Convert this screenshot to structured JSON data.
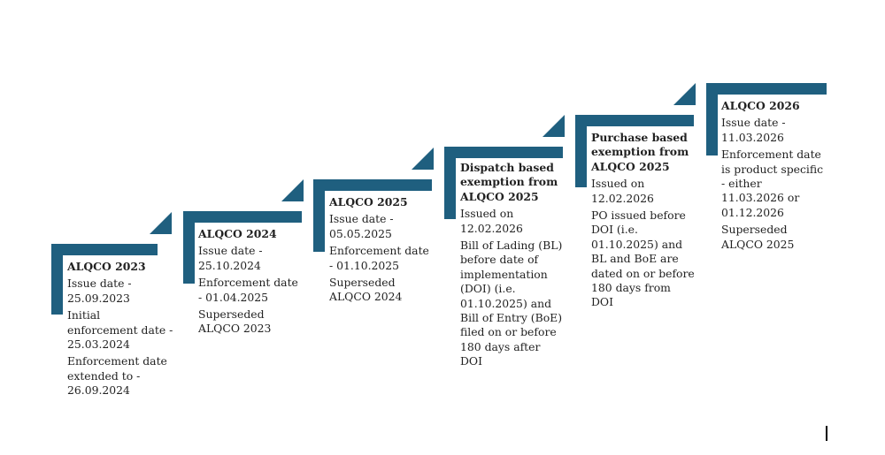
{
  "accent_color": "#1f5f7f",
  "steps": [
    {
      "title": "ALQCO 2023",
      "paragraphs": [
        "Issue date - 25.09.2023",
        "Initial enforcement date - 25.03.2024",
        "Enforcement date extended to - 26.09.2024"
      ]
    },
    {
      "title": "ALQCO 2024",
      "paragraphs": [
        "Issue date - 25.10.2024",
        "Enforcement date - 01.04.2025",
        "Superseded ALQCO 2023"
      ]
    },
    {
      "title": "ALQCO 2025",
      "paragraphs": [
        "Issue date - 05.05.2025",
        "Enforcement date - 01.10.2025",
        "Superseded ALQCO 2024"
      ]
    },
    {
      "title": "Dispatch based exemption from ALQCO 2025",
      "paragraphs": [
        "Issued on 12.02.2026",
        "Bill of Lading (BL) before date of implementation (DOI) (i.e. 01.10.2025) and Bill of Entry (BoE) filed on or before 180 days after DOI"
      ]
    },
    {
      "title": "Purchase based exemption from ALQCO 2025",
      "paragraphs": [
        "Issued on 12.02.2026",
        "PO issued before DOI (i.e. 01.10.2025) and BL and BoE are dated on or before 180 days from DOI"
      ]
    },
    {
      "title": "ALQCO 2026",
      "paragraphs": [
        "Issue date - 11.03.2026",
        "Enforcement date is product specific - either 11.03.2026 or 01.12.2026",
        "Superseded ALQCO 2025"
      ]
    }
  ]
}
